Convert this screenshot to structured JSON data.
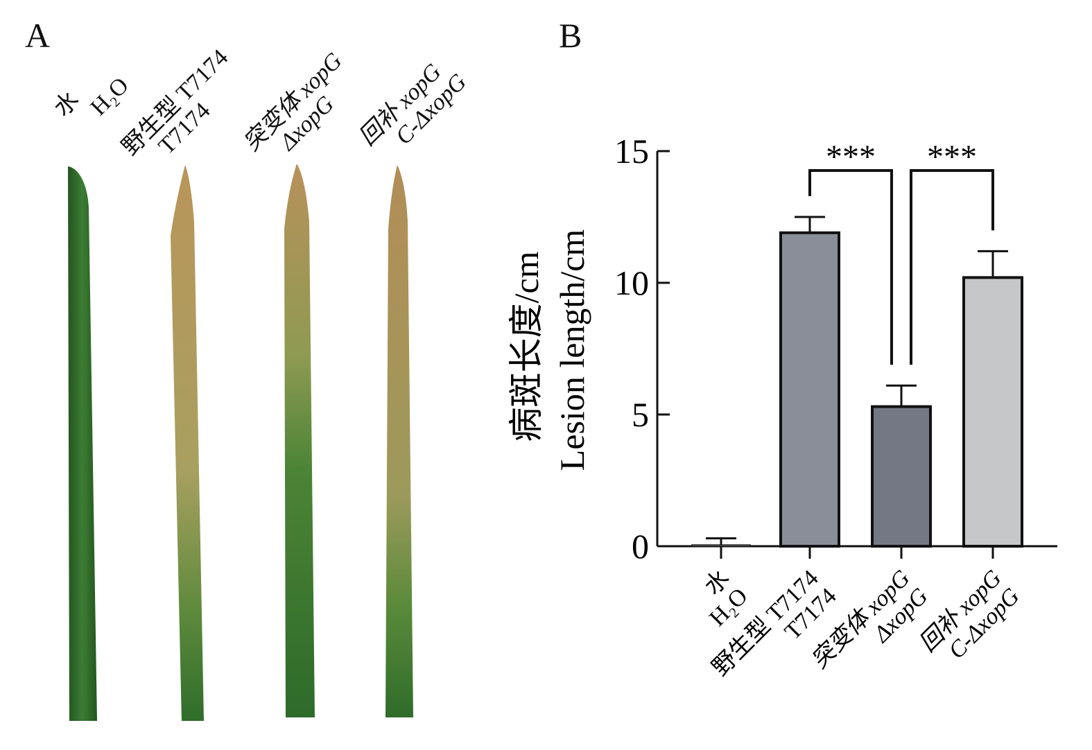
{
  "panels": {
    "a": "A",
    "b": "B"
  },
  "groups": [
    {
      "cn": "水",
      "en": "H₂O"
    },
    {
      "cn": "野生型 T7174",
      "en": "T7174"
    },
    {
      "cn": "突变体 xopG",
      "en": "ΔxopG"
    },
    {
      "cn": "回补 xopG",
      "en": "C-ΔxopG"
    }
  ],
  "leaf_colors": {
    "healthy": "#2f6b2a",
    "lesion": "#b59a5a",
    "bar_wt": "#8a8e98",
    "bar_mut": "#747884",
    "bar_comp": "#c6c7c9"
  },
  "chart_data": {
    "type": "bar",
    "categories": [
      "水 H₂O",
      "野生型 T7174 T7174",
      "突变体 xopG ΔxopG",
      "回补 xopG C-ΔxopG"
    ],
    "values": [
      0.05,
      11.9,
      5.3,
      10.2
    ],
    "errors": [
      0.25,
      0.6,
      0.8,
      1.0
    ],
    "ylabel_cn": "病斑长度/cm",
    "ylabel_en": "Lesion length/cm",
    "ylim": [
      0,
      15
    ],
    "yticks": [
      0,
      5,
      10,
      15
    ],
    "significance": [
      {
        "from": 1,
        "to": 2,
        "label": "***"
      },
      {
        "from": 2,
        "to": 3,
        "label": "***"
      }
    ]
  }
}
